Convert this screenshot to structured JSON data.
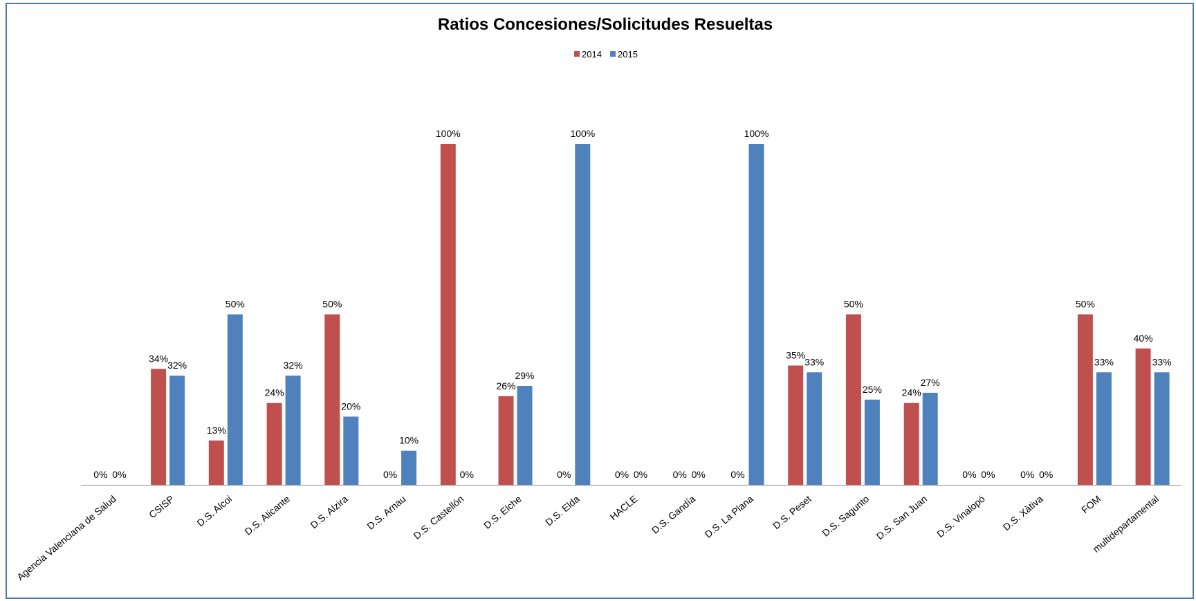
{
  "chart_data": {
    "type": "bar",
    "title": "Ratios Concesiones/Solicitudes Resueltas",
    "xlabel": "",
    "ylabel": "",
    "ylim": [
      0,
      1
    ],
    "grid": false,
    "legend_position": "top-center",
    "value_format": "percent",
    "categories": [
      "Agencia Valenciana de Salud",
      "CSISP",
      "D.S. Alcoi",
      "D.S. Alicante",
      "D.S. Alzira",
      "D.S. Arnau",
      "D.S. Castellón",
      "D.S. Elche",
      "D.S. Elda",
      "HACLE",
      "D.S. Gandía",
      "D.S. La Plana",
      "D.S. Peset",
      "D.S. Sagunto",
      "D.S. San Juan",
      "D.S. Vinalopó",
      "D.S. Xàtiva",
      "FOM",
      "multidepartamental"
    ],
    "series": [
      {
        "name": "2014",
        "color": "#c0504d",
        "values": [
          0,
          0.34,
          0.13,
          0.24,
          0.5,
          0,
          1.0,
          0.26,
          0,
          0,
          0,
          0,
          0.35,
          0.5,
          0.24,
          0,
          0,
          0.5,
          0.4
        ],
        "labels": [
          "0%",
          "34%",
          "13%",
          "24%",
          "50%",
          "0%",
          "100%",
          "26%",
          "0%",
          "0%",
          "0%",
          "0%",
          "35%",
          "50%",
          "24%",
          "0%",
          "0%",
          "50%",
          "40%"
        ]
      },
      {
        "name": "2015",
        "color": "#4f81bd",
        "values": [
          0,
          0.32,
          0.5,
          0.32,
          0.2,
          0.1,
          0,
          0.29,
          1.0,
          0,
          0,
          1.0,
          0.33,
          0.25,
          0.27,
          0,
          0,
          0.33,
          0.33
        ],
        "labels": [
          "0%",
          "32%",
          "50%",
          "32%",
          "20%",
          "10%",
          "0%",
          "29%",
          "100%",
          "0%",
          "0%",
          "100%",
          "33%",
          "25%",
          "27%",
          "0%",
          "0%",
          "33%",
          "33%"
        ]
      }
    ]
  }
}
